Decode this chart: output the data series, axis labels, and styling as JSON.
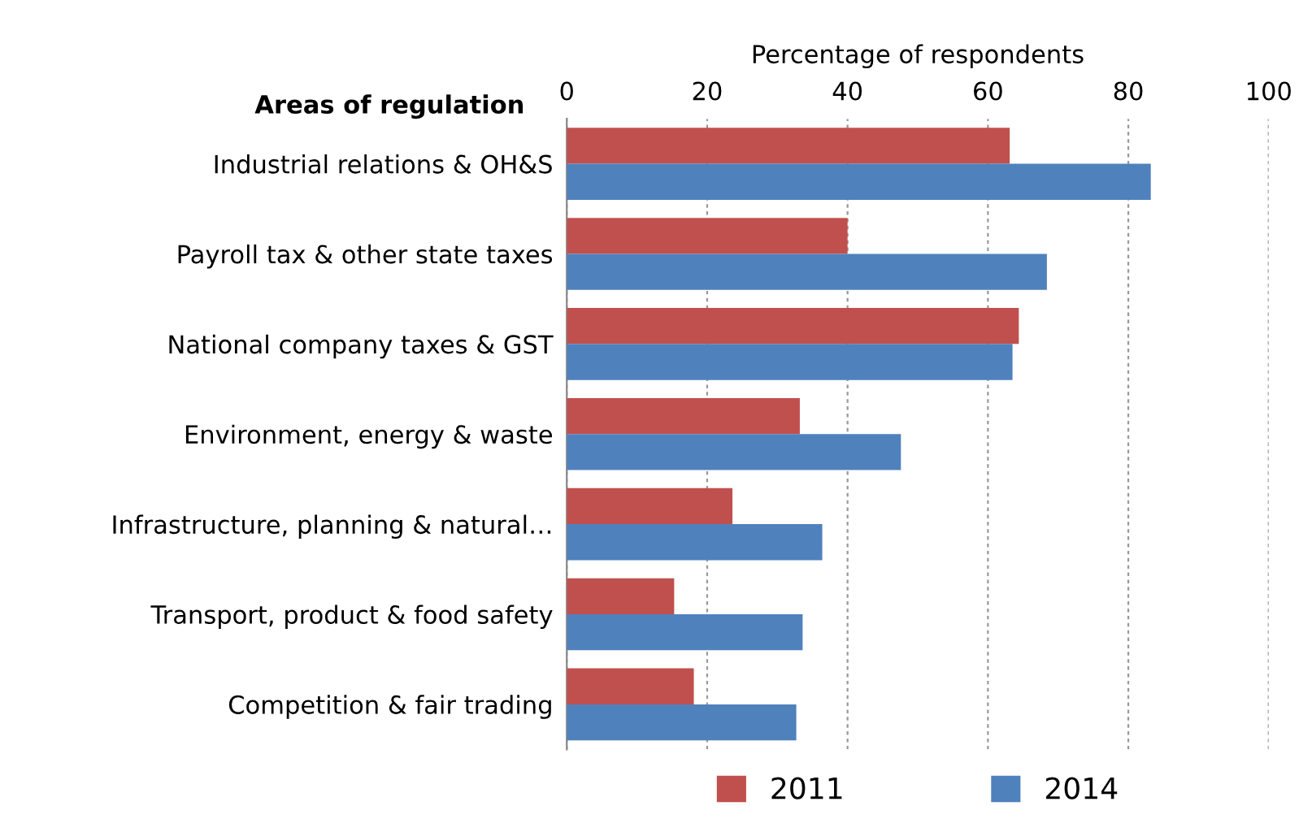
{
  "chart_data": {
    "type": "bar",
    "orientation": "horizontal",
    "xlabel": "Percentage of respondents",
    "ylabel": "Areas of regulation",
    "categories": [
      "Industrial relations & OH&S",
      "Payroll tax & other state taxes",
      "National company taxes & GST",
      "Environment, energy & waste",
      "Infrastructure, planning & natural…",
      "Transport, product & food safety",
      "Competition & fair trading"
    ],
    "series": [
      {
        "name": "2011",
        "color": "#c0504d",
        "values": [
          63.1,
          40.0,
          64.4,
          33.2,
          23.6,
          15.3,
          18.1
        ]
      },
      {
        "name": "2014",
        "color": "#4f81bd",
        "values": [
          83.2,
          68.4,
          63.5,
          47.6,
          36.4,
          33.6,
          32.7
        ]
      }
    ],
    "xlim": [
      0,
      100
    ],
    "xticks": [
      0,
      20,
      40,
      60,
      80,
      100
    ],
    "grid": "x",
    "legend": "bottom"
  }
}
